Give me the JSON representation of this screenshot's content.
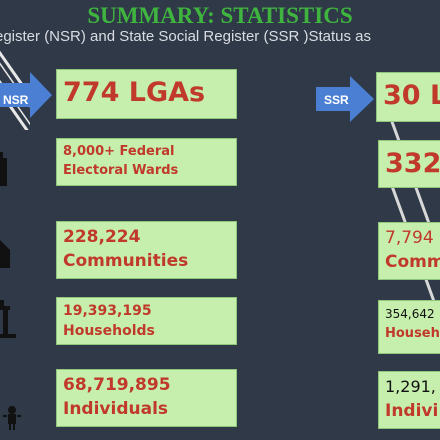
{
  "header": {
    "title": "SUMMARY: STATISTICS",
    "subtitle": "egister (NSR) and State Social Register (SSR )Status as"
  },
  "nsr": {
    "label": "NSR",
    "lgas": "774 LGAs",
    "wards_line1": "8,000+ Federal",
    "wards_line2": "Electoral Wards",
    "communities_value": "228,224",
    "communities_label": "Communities",
    "households_value": "19,393,195",
    "households_label": "Households",
    "individuals_value": "68,719,895",
    "individuals_label": "Individuals"
  },
  "ssr": {
    "label": "SSR",
    "lgas": "30 L",
    "wards": "332",
    "communities_value": "7,794",
    "communities_label": "Comm",
    "households_value": "354,642",
    "households_label": "Househ",
    "individuals_value": "1,291,",
    "individuals_label": "Indivi"
  },
  "colors": {
    "background": "#2f3947",
    "title": "#3fb53f",
    "box_fill": "#c6efad",
    "value_red": "#c0392b",
    "arrow_blue": "#4a7fd4"
  },
  "icons": [
    "map-icon",
    "ballot-icon",
    "house-icon",
    "household-icon",
    "family-icon",
    "film-strip-icon"
  ]
}
